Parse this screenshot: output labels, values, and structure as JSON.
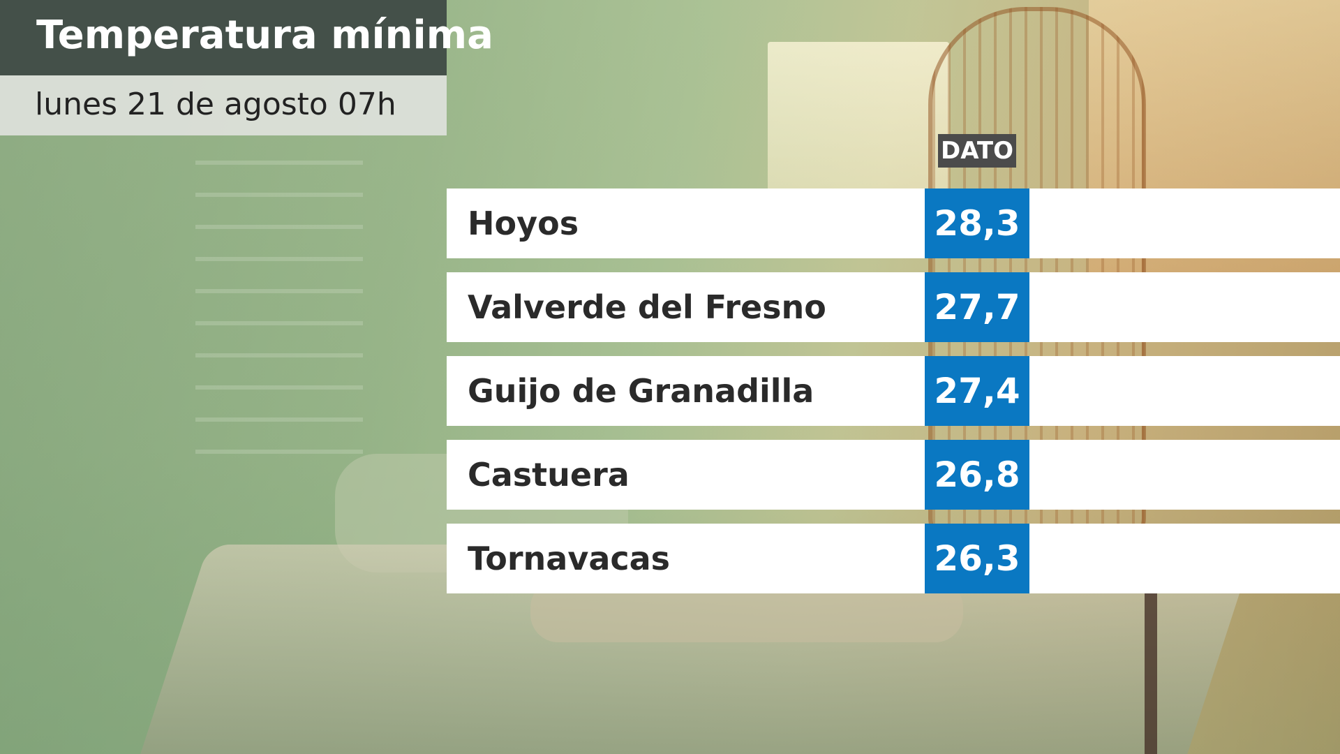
{
  "header": {
    "title": "Temperatura mínima",
    "subtitle": "lunes 21 de agosto 07h"
  },
  "table": {
    "column_header": "DATO",
    "rows": [
      {
        "location": "Hoyos",
        "value": "28,3"
      },
      {
        "location": "Valverde del Fresno",
        "value": "27,7"
      },
      {
        "location": "Guijo de Granadilla",
        "value": "27,4"
      },
      {
        "location": "Castuera",
        "value": "26,8"
      },
      {
        "location": "Tornavacas",
        "value": "26,3"
      }
    ]
  },
  "colors": {
    "title_background": "#445049",
    "subtitle_background": "#e0e2de",
    "value_background": "#0a78c2",
    "column_header_background": "#4b4b4b",
    "row_background": "#ffffff"
  }
}
